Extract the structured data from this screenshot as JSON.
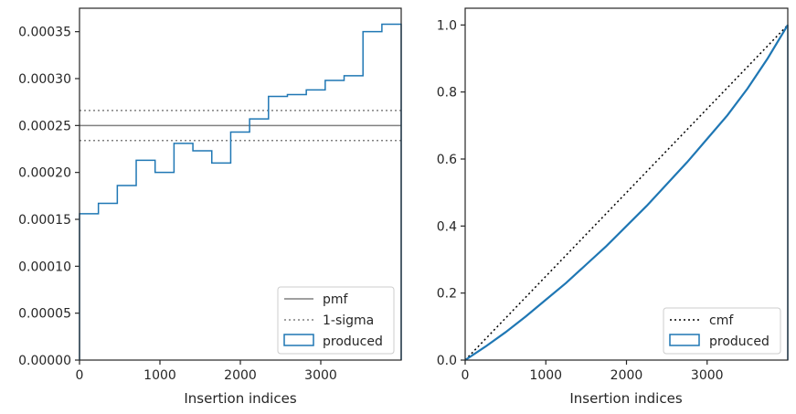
{
  "chart_data": [
    {
      "type": "line",
      "xlabel": "Insertion indices",
      "ylabel": "",
      "xlim": [
        0,
        4000
      ],
      "ylim": [
        0,
        0.000375
      ],
      "xticks": [
        "0",
        "1000",
        "2000",
        "3000"
      ],
      "yticks": [
        "0.00000",
        "0.00005",
        "0.00010",
        "0.00015",
        "0.00020",
        "0.00025",
        "0.00030",
        "0.00035"
      ],
      "pmf": 0.00025,
      "sigma_band": [
        0.000234,
        0.000266
      ],
      "histogram": {
        "bin_edges": [
          0,
          235,
          470,
          705,
          940,
          1175,
          1410,
          1645,
          1880,
          2115,
          2350,
          2585,
          2820,
          3055,
          3290,
          3525,
          3760,
          4000
        ],
        "values": [
          0.000156,
          0.000167,
          0.000186,
          0.000213,
          0.0002,
          0.000231,
          0.000223,
          0.00021,
          0.000243,
          0.000257,
          0.000281,
          0.000283,
          0.000288,
          0.000298,
          0.000303,
          0.00035,
          0.000358
        ]
      },
      "legend": {
        "position": "lower right",
        "entries": [
          "pmf",
          "1-sigma",
          "produced"
        ]
      },
      "colors": {
        "pmf": "#808080",
        "sigma": "#808080",
        "produced": "#1f77b4"
      }
    },
    {
      "type": "line",
      "xlabel": "Insertion indices",
      "ylabel": "",
      "xlim": [
        0,
        4000
      ],
      "ylim": [
        0,
        1.05
      ],
      "xticks": [
        "0",
        "1000",
        "2000",
        "3000"
      ],
      "yticks": [
        "0.0",
        "0.2",
        "0.4",
        "0.6",
        "0.8",
        "1.0"
      ],
      "cmf": {
        "x": [
          0,
          4000
        ],
        "y": [
          0,
          1
        ]
      },
      "produced": {
        "x": [
          0,
          250,
          500,
          750,
          1000,
          1250,
          1500,
          1750,
          2000,
          2250,
          2500,
          2750,
          3000,
          3250,
          3500,
          3750,
          4000
        ],
        "y": [
          0,
          0.04,
          0.083,
          0.13,
          0.18,
          0.23,
          0.285,
          0.34,
          0.4,
          0.46,
          0.525,
          0.59,
          0.66,
          0.73,
          0.81,
          0.9,
          1.0
        ]
      },
      "legend": {
        "position": "lower right",
        "entries": [
          "cmf",
          "produced"
        ]
      },
      "colors": {
        "cmf": "#000000",
        "produced": "#1f77b4"
      }
    }
  ]
}
